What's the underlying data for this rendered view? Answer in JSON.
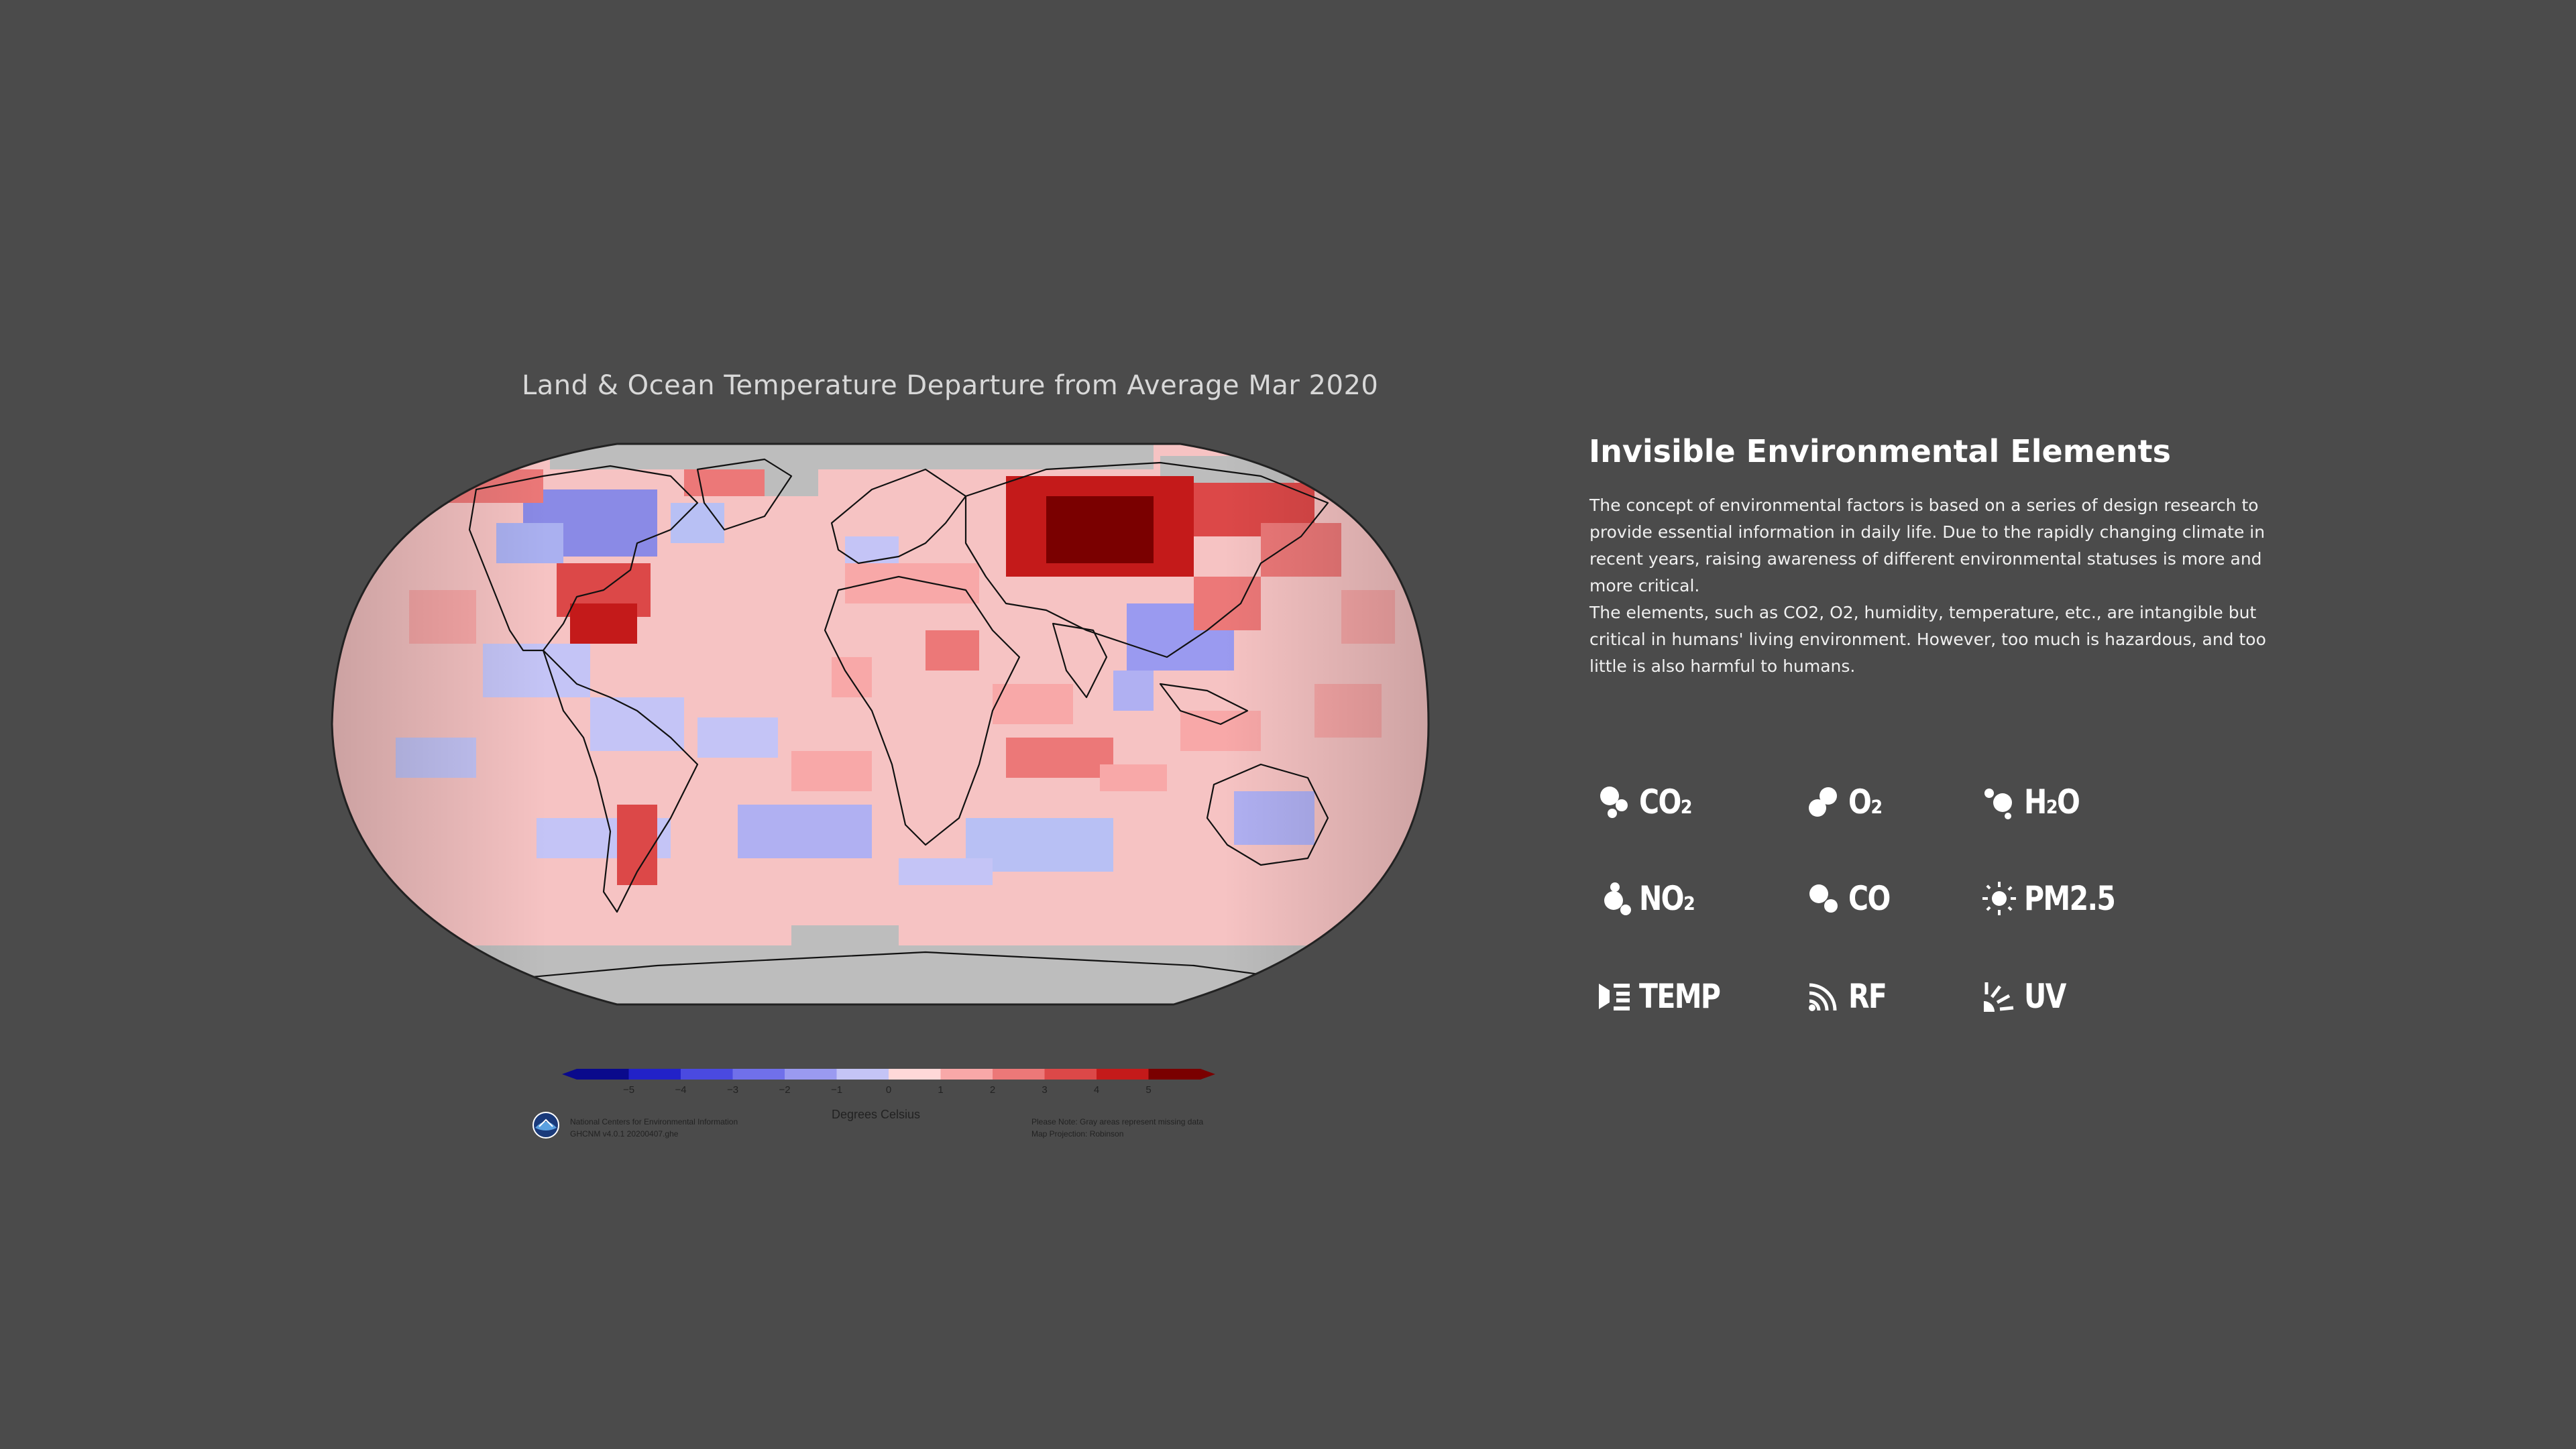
{
  "map": {
    "title": "Land & Ocean Temperature Departure from Average Mar 2020",
    "legend": {
      "ticks": [
        "−5",
        "−4",
        "−3",
        "−2",
        "−1",
        "0",
        "1",
        "2",
        "3",
        "4",
        "5"
      ],
      "axis_label": "Degrees Celsius",
      "colors": [
        "#0a0a8c",
        "#2222c8",
        "#4a4ae0",
        "#7070ea",
        "#9a9af0",
        "#c4c4f6",
        "#ffd8d8",
        "#f8a8a8",
        "#ec7878",
        "#dc4848",
        "#c41a1a",
        "#7a0000"
      ],
      "credit_left": [
        "National Centers for Environmental Information",
        "GHCNM v4.0.1 20200407.ghe"
      ],
      "credit_right": [
        "Please Note: Gray areas represent missing data",
        "Map Projection: Robinson"
      ]
    }
  },
  "info": {
    "title": "Invisible Environmental Elements",
    "paragraphs": [
      "The concept of environmental factors is based on a series of design research to provide essential information in daily life. Due to the rapidly changing climate in recent years, raising awareness of different environmental statuses is more and more critical.",
      "The elements, such as CO2, O2, humidity, temperature, etc., are intangible but critical in humans' living environment. However, too much is hazardous, and too little is also harmful to humans."
    ]
  },
  "elements": [
    {
      "label": "CO₂",
      "icon": "co2-molecule-icon"
    },
    {
      "label": "O₂",
      "icon": "o2-molecule-icon"
    },
    {
      "label": "H₂O",
      "icon": "h2o-molecule-icon"
    },
    {
      "label": "NO₂",
      "icon": "no2-molecule-icon"
    },
    {
      "label": "CO",
      "icon": "co-molecule-icon"
    },
    {
      "label": "PM2.5",
      "icon": "pm25-particle-icon"
    },
    {
      "label": "TEMP",
      "icon": "thermometer-icon"
    },
    {
      "label": "RF",
      "icon": "radio-waves-icon"
    },
    {
      "label": "UV",
      "icon": "sun-rays-icon"
    }
  ]
}
